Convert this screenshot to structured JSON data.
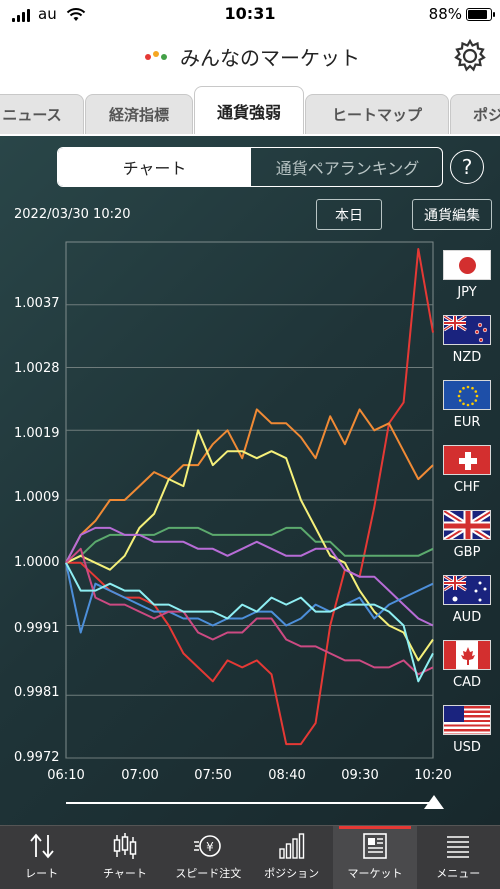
{
  "status_bar": {
    "carrier": "au",
    "time": "10:31",
    "battery": "88%"
  },
  "header": {
    "title": "みんなのマーケット"
  },
  "tabs": [
    {
      "label": "ニュース"
    },
    {
      "label": "経済指標"
    },
    {
      "label": "通貨強弱",
      "active": true
    },
    {
      "label": "ヒートマップ"
    },
    {
      "label": "ポジ"
    }
  ],
  "segment": {
    "chart": "チャート",
    "ranking": "通貨ペアランキング"
  },
  "help_label": "?",
  "datetime": "2022/03/30 10:20",
  "buttons": {
    "today": "本日",
    "edit": "通貨編集"
  },
  "colors": {
    "background": "#1f3438",
    "nav_background": "#3a3a3c",
    "nav_active_indicator": "#e53935"
  },
  "chart_data": {
    "type": "line",
    "x": [
      "06:10",
      "06:20",
      "06:30",
      "06:40",
      "06:50",
      "07:00",
      "07:10",
      "07:20",
      "07:30",
      "07:40",
      "07:50",
      "08:00",
      "08:10",
      "08:20",
      "08:30",
      "08:40",
      "08:50",
      "09:00",
      "09:10",
      "09:20",
      "09:30",
      "09:40",
      "09:50",
      "10:00",
      "10:10",
      "10:20"
    ],
    "x_tick_labels": [
      "06:10",
      "07:00",
      "07:50",
      "08:40",
      "09:30",
      "10:20"
    ],
    "y_tick_labels": [
      "1.0037",
      "1.0028",
      "1.0019",
      "1.0009",
      "1.0000",
      "0.9991",
      "0.9981",
      "0.9972"
    ],
    "ylim": [
      0.9972,
      1.0046
    ],
    "grid": true,
    "series": [
      {
        "name": "JPY",
        "color": "#e53935",
        "values": [
          1.0,
          1.0,
          0.9998,
          0.9996,
          0.9995,
          0.9995,
          0.9994,
          0.9991,
          0.9987,
          0.9985,
          0.9983,
          0.9986,
          0.9985,
          0.9986,
          0.9984,
          0.9974,
          0.9974,
          0.9977,
          0.9991,
          0.9999,
          0.9998,
          1.0008,
          1.002,
          1.0023,
          1.0045,
          1.0033
        ]
      },
      {
        "name": "NZD",
        "color": "#f08a35",
        "values": [
          1.0,
          1.0004,
          1.0006,
          1.0009,
          1.0009,
          1.0011,
          1.0013,
          1.0012,
          1.0014,
          1.0014,
          1.0017,
          1.0019,
          1.0015,
          1.0022,
          1.002,
          1.002,
          1.0018,
          1.0015,
          1.0021,
          1.0017,
          1.0022,
          1.0019,
          1.002,
          1.0016,
          1.0012,
          1.0014
        ]
      },
      {
        "name": "EUR",
        "color": "#5caa6e",
        "values": [
          1.0,
          1.0001,
          1.0003,
          1.0004,
          1.0004,
          1.0004,
          1.0004,
          1.0005,
          1.0005,
          1.0005,
          1.0004,
          1.0004,
          1.0004,
          1.0004,
          1.0004,
          1.0005,
          1.0005,
          1.0003,
          1.0003,
          1.0001,
          1.0001,
          1.0001,
          1.0001,
          1.0001,
          1.0001,
          1.0002
        ]
      },
      {
        "name": "CHF",
        "color": "#f5f07a",
        "values": [
          1.0,
          1.0001,
          1.0,
          0.9999,
          1.0001,
          1.0005,
          1.0007,
          1.0012,
          1.0011,
          1.0019,
          1.0014,
          1.0016,
          1.0016,
          1.0015,
          1.0016,
          1.0015,
          1.0009,
          1.0005,
          1.0001,
          1.0,
          0.9996,
          0.9993,
          0.9991,
          0.999,
          0.9986,
          0.9989
        ]
      },
      {
        "name": "GBP",
        "color": "#b76cd6",
        "values": [
          1.0,
          1.0004,
          1.0005,
          1.0005,
          1.0004,
          1.0004,
          1.0003,
          1.0003,
          1.0003,
          1.0002,
          1.0002,
          1.0001,
          1.0002,
          1.0003,
          1.0002,
          1.0001,
          1.0001,
          1.0002,
          1.0002,
          0.9999,
          0.9998,
          0.9998,
          0.9996,
          0.9994,
          0.9992,
          0.9991
        ]
      },
      {
        "name": "AUD",
        "color": "#4d8fda",
        "values": [
          1.0,
          0.999,
          0.9997,
          0.9996,
          0.9995,
          0.9994,
          0.9993,
          0.9993,
          0.9992,
          0.9992,
          0.9991,
          0.9992,
          0.9992,
          0.9993,
          0.9993,
          0.9991,
          0.9992,
          0.9994,
          0.9993,
          0.9994,
          0.9995,
          0.9992,
          0.9994,
          0.9995,
          0.9996,
          0.9997
        ]
      },
      {
        "name": "CAD",
        "color": "#cc4a82",
        "values": [
          1.0,
          1.0002,
          0.9995,
          0.9994,
          0.9994,
          0.9993,
          0.9992,
          0.9993,
          0.9993,
          0.999,
          0.9989,
          0.999,
          0.999,
          0.9992,
          0.9992,
          0.9989,
          0.9988,
          0.9988,
          0.9987,
          0.9986,
          0.9986,
          0.9985,
          0.9985,
          0.9986,
          0.9984,
          0.9985
        ]
      },
      {
        "name": "USD",
        "color": "#8eeef2",
        "values": [
          1.0,
          0.9996,
          0.9996,
          0.9997,
          0.9996,
          0.9996,
          0.9994,
          0.9994,
          0.9993,
          0.9993,
          0.9993,
          0.9992,
          0.9994,
          0.9993,
          0.9995,
          0.9994,
          0.9995,
          0.9993,
          0.9993,
          0.9994,
          0.9994,
          0.9994,
          0.9993,
          0.9991,
          0.9983,
          0.9987
        ]
      }
    ]
  },
  "legend": [
    {
      "code": "JPY",
      "flag": "jp-flag"
    },
    {
      "code": "NZD",
      "flag": "nz-flag"
    },
    {
      "code": "EUR",
      "flag": "eu-flag"
    },
    {
      "code": "CHF",
      "flag": "ch-flag"
    },
    {
      "code": "GBP",
      "flag": "gb-flag"
    },
    {
      "code": "AUD",
      "flag": "au-flag"
    },
    {
      "code": "CAD",
      "flag": "ca-flag"
    },
    {
      "code": "USD",
      "flag": "us-flag"
    }
  ],
  "slider": {
    "position": 1.0
  },
  "bottom_nav": [
    {
      "label": "レート",
      "icon": "sort-arrows-icon"
    },
    {
      "label": "チャート",
      "icon": "candlestick-icon"
    },
    {
      "label": "スピード注文",
      "icon": "speed-order-icon"
    },
    {
      "label": "ポジション",
      "icon": "bar-position-icon"
    },
    {
      "label": "マーケット",
      "icon": "newspaper-icon",
      "active": true
    },
    {
      "label": "メニュー",
      "icon": "menu-icon"
    }
  ]
}
